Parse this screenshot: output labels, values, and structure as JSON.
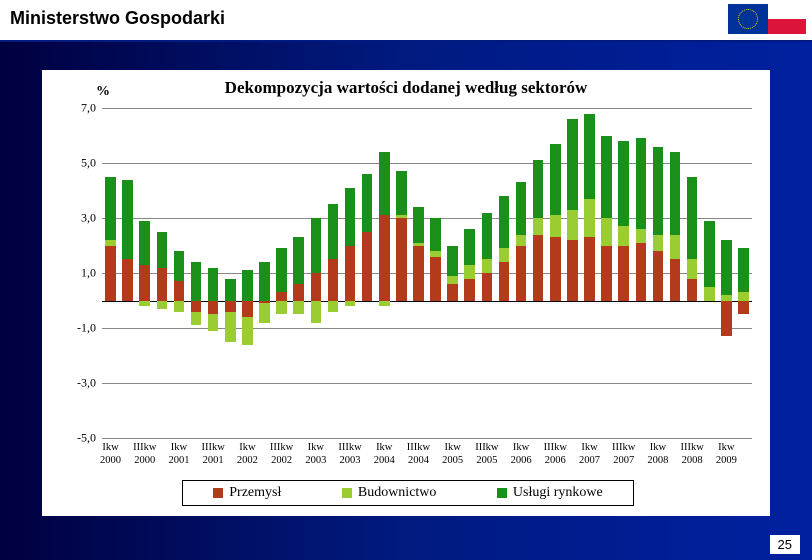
{
  "header": {
    "title": "Ministerstwo Gospodarki"
  },
  "page_number": "25",
  "chart": {
    "type": "stacked-bar",
    "title": "Dekompozycja wartości dodanej według sektorów",
    "y_unit": "%",
    "ylim": [
      -5.0,
      7.0
    ],
    "y_ticks": [
      -5.0,
      -3.0,
      -1.0,
      1.0,
      3.0,
      5.0,
      7.0
    ],
    "y_tick_labels": [
      "-5,0",
      "-3,0",
      "-1,0",
      "1,0",
      "3,0",
      "5,0",
      "7,0"
    ],
    "background_color": "#ffffff",
    "grid_color": "#888888",
    "bar_width": 0.62,
    "title_fontsize": 17,
    "label_fontsize": 12,
    "tick_fontsize": 11,
    "series": [
      {
        "key": "przemysl",
        "label": "Przemysł",
        "color": "#b33a1a"
      },
      {
        "key": "budownictwo",
        "label": "Budownictwo",
        "color": "#9acd32"
      },
      {
        "key": "uslugi",
        "label": "Usługi rynkowe",
        "color": "#1a8f1a"
      }
    ],
    "categories": [
      {
        "q": "Ikw",
        "y": "2000",
        "przemysl": 2.0,
        "budownictwo": 0.2,
        "uslugi": 2.3
      },
      {
        "q": "IIkw",
        "y": "2000",
        "przemysl": 1.5,
        "budownictwo": 0.0,
        "uslugi": 2.9
      },
      {
        "q": "IIIkw",
        "y": "2000",
        "przemysl": 1.3,
        "budownictwo": -0.2,
        "uslugi": 1.6
      },
      {
        "q": "IVkw",
        "y": "2000",
        "przemysl": 1.2,
        "budownictwo": -0.3,
        "uslugi": 1.3
      },
      {
        "q": "Ikw",
        "y": "2001",
        "przemysl": 0.7,
        "budownictwo": -0.4,
        "uslugi": 1.1
      },
      {
        "q": "IIkw",
        "y": "2001",
        "przemysl": -0.4,
        "budownictwo": -0.5,
        "uslugi": 1.4
      },
      {
        "q": "IIIkw",
        "y": "2001",
        "przemysl": -0.5,
        "budownictwo": -0.6,
        "uslugi": 1.2
      },
      {
        "q": "IVkw",
        "y": "2001",
        "przemysl": -0.4,
        "budownictwo": -1.1,
        "uslugi": 0.8
      },
      {
        "q": "Ikw",
        "y": "2002",
        "przemysl": -0.6,
        "budownictwo": -1.0,
        "uslugi": 1.1
      },
      {
        "q": "IIkw",
        "y": "2002",
        "przemysl": -0.1,
        "budownictwo": -0.7,
        "uslugi": 1.4
      },
      {
        "q": "IIIkw",
        "y": "2002",
        "przemysl": 0.3,
        "budownictwo": -0.5,
        "uslugi": 1.6
      },
      {
        "q": "IVkw",
        "y": "2002",
        "przemysl": 0.6,
        "budownictwo": -0.5,
        "uslugi": 1.7
      },
      {
        "q": "Ikw",
        "y": "2003",
        "przemysl": 1.0,
        "budownictwo": -0.8,
        "uslugi": 2.0
      },
      {
        "q": "IIkw",
        "y": "2003",
        "przemysl": 1.5,
        "budownictwo": -0.4,
        "uslugi": 2.0
      },
      {
        "q": "IIIkw",
        "y": "2003",
        "przemysl": 2.0,
        "budownictwo": -0.2,
        "uslugi": 2.1
      },
      {
        "q": "IVkw",
        "y": "2003",
        "przemysl": 2.5,
        "budownictwo": 0.0,
        "uslugi": 2.1
      },
      {
        "q": "Ikw",
        "y": "2004",
        "przemysl": 3.1,
        "budownictwo": -0.2,
        "uslugi": 2.3
      },
      {
        "q": "IIkw",
        "y": "2004",
        "przemysl": 3.0,
        "budownictwo": 0.1,
        "uslugi": 1.6
      },
      {
        "q": "IIIkw",
        "y": "2004",
        "przemysl": 2.0,
        "budownictwo": 0.1,
        "uslugi": 1.3
      },
      {
        "q": "IVkw",
        "y": "2004",
        "przemysl": 1.6,
        "budownictwo": 0.2,
        "uslugi": 1.2
      },
      {
        "q": "Ikw",
        "y": "2005",
        "przemysl": 0.6,
        "budownictwo": 0.3,
        "uslugi": 1.1
      },
      {
        "q": "IIkw",
        "y": "2005",
        "przemysl": 0.8,
        "budownictwo": 0.5,
        "uslugi": 1.3
      },
      {
        "q": "IIIkw",
        "y": "2005",
        "przemysl": 1.0,
        "budownictwo": 0.5,
        "uslugi": 1.7
      },
      {
        "q": "IVkw",
        "y": "2005",
        "przemysl": 1.4,
        "budownictwo": 0.5,
        "uslugi": 1.9
      },
      {
        "q": "Ikw",
        "y": "2006",
        "przemysl": 2.0,
        "budownictwo": 0.4,
        "uslugi": 1.9
      },
      {
        "q": "IIkw",
        "y": "2006",
        "przemysl": 2.4,
        "budownictwo": 0.6,
        "uslugi": 2.1
      },
      {
        "q": "IIIkw",
        "y": "2006",
        "przemysl": 2.3,
        "budownictwo": 0.8,
        "uslugi": 2.6
      },
      {
        "q": "IVkw",
        "y": "2006",
        "przemysl": 2.2,
        "budownictwo": 1.1,
        "uslugi": 3.3
      },
      {
        "q": "Ikw",
        "y": "2007",
        "przemysl": 2.3,
        "budownictwo": 1.4,
        "uslugi": 3.1
      },
      {
        "q": "IIkw",
        "y": "2007",
        "przemysl": 2.0,
        "budownictwo": 1.0,
        "uslugi": 3.0
      },
      {
        "q": "IIIkw",
        "y": "2007",
        "przemysl": 2.0,
        "budownictwo": 0.7,
        "uslugi": 3.1
      },
      {
        "q": "IVkw",
        "y": "2007",
        "przemysl": 2.1,
        "budownictwo": 0.5,
        "uslugi": 3.3
      },
      {
        "q": "Ikw",
        "y": "2008",
        "przemysl": 1.8,
        "budownictwo": 0.6,
        "uslugi": 3.2
      },
      {
        "q": "IIkw",
        "y": "2008",
        "przemysl": 1.5,
        "budownictwo": 0.9,
        "uslugi": 3.0
      },
      {
        "q": "IIIkw",
        "y": "2008",
        "przemysl": 0.8,
        "budownictwo": 0.7,
        "uslugi": 3.0
      },
      {
        "q": "IVkw",
        "y": "2008",
        "przemysl": 0.0,
        "budownictwo": 0.5,
        "uslugi": 2.4
      },
      {
        "q": "Ikw",
        "y": "2009",
        "przemysl": -1.3,
        "budownictwo": 0.2,
        "uslugi": 2.0
      },
      {
        "q": "IIkw",
        "y": "2009",
        "przemysl": -0.5,
        "budownictwo": 0.3,
        "uslugi": 1.6
      }
    ],
    "x_axis_labels_every": 2
  }
}
